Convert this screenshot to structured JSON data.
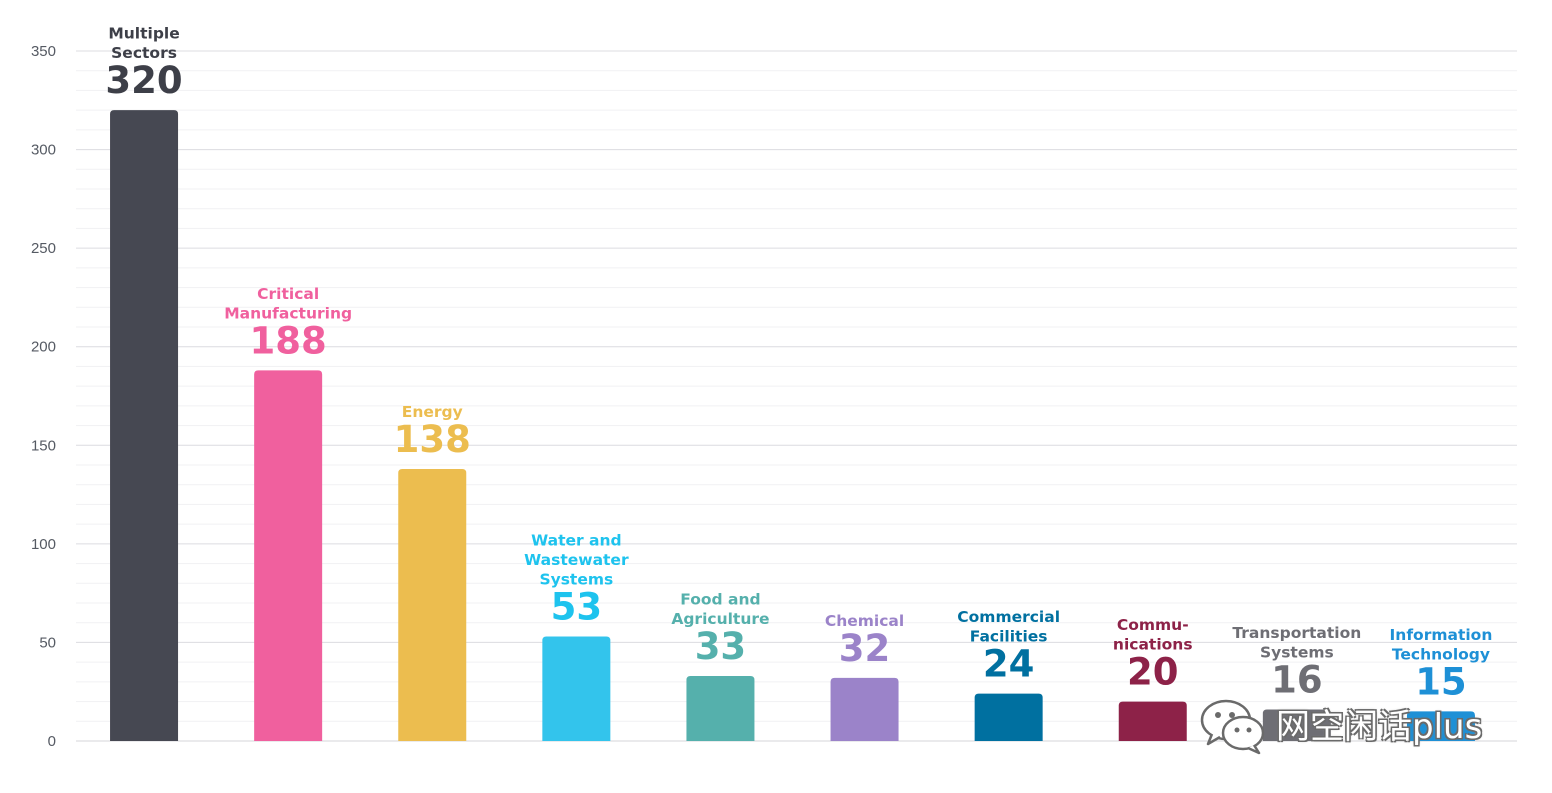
{
  "chart_data": {
    "type": "bar",
    "categories": [
      [
        "Multiple",
        "Sectors"
      ],
      [
        "Critical",
        "Manufacturing"
      ],
      [
        "Energy"
      ],
      [
        "Water and",
        "Wastewater",
        "Systems"
      ],
      [
        "Food and",
        "Agriculture"
      ],
      [
        "Chemical"
      ],
      [
        "Commercial",
        "Facilities"
      ],
      [
        "Commu-",
        "nications"
      ],
      [
        "Transportation",
        "Systems"
      ],
      [
        "Information",
        "Technology"
      ]
    ],
    "values": [
      320,
      188,
      138,
      53,
      33,
      32,
      24,
      20,
      16,
      15
    ],
    "value_labels": [
      "320",
      "188",
      "138",
      "53",
      "33",
      "32",
      "24",
      "20",
      "16",
      "15"
    ],
    "colors": [
      "#464852",
      "#f0609e",
      "#ecbd4f",
      "#33c4ec",
      "#55b0ac",
      "#9b83c9",
      "#0070a0",
      "#8d2248",
      "#6e6e74",
      "#1e90d6"
    ],
    "value_label_colors": [
      "#3d3f48",
      "#f0609e",
      "#ecbd4f",
      "#1ec3ee",
      "#55b0ac",
      "#9b83c9",
      "#0070a0",
      "#8d2248",
      "#6e6e74",
      "#1e90d6"
    ],
    "y_ticks": [
      0,
      50,
      100,
      150,
      200,
      250,
      300,
      350
    ],
    "ylim": [
      0,
      350
    ],
    "grid": true,
    "title": "",
    "xlabel": "",
    "ylabel": ""
  },
  "watermark": {
    "text": "网空闲话plus",
    "icon": "wechat-icon"
  }
}
